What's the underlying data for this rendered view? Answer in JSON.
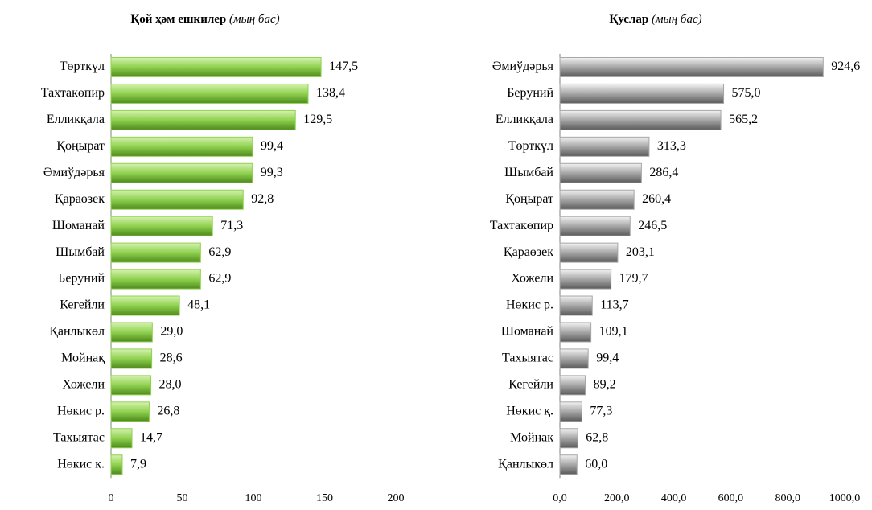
{
  "chart_data": [
    {
      "type": "barh",
      "title": "Қой ҳәм ешкилер",
      "subtitle": "(мың бас)",
      "categories": [
        "Төрткүл",
        "Тахтакөпир",
        "Елликқала",
        "Қоңырат",
        "Әмиўдәрья",
        "Қараөзек",
        "Шоманай",
        "Шымбай",
        "Беруний",
        "Кегейли",
        "Қанлыкөл",
        "Мойнақ",
        "Хожели",
        "Нөкис р.",
        "Тахыятас",
        "Нөкис қ."
      ],
      "values": [
        147.5,
        138.4,
        129.5,
        99.4,
        99.3,
        92.8,
        71.3,
        62.9,
        62.9,
        48.1,
        29.0,
        28.6,
        28.0,
        26.8,
        14.7,
        7.9
      ],
      "value_labels": [
        "147,5",
        "138,4",
        "129,5",
        "99,4",
        "99,3",
        "92,8",
        "71,3",
        "62,9",
        "62,9",
        "48,1",
        "29,0",
        "28,6",
        "28,0",
        "26,8",
        "14,7",
        "7,9"
      ],
      "color": "#8fd14f",
      "xlim": [
        0,
        200
      ],
      "xticks": [
        0,
        50,
        100,
        150,
        200
      ]
    },
    {
      "type": "barh",
      "title": "Қуслар",
      "subtitle": "(мың бас)",
      "categories": [
        "Әмиўдәрья",
        "Беруний",
        "Елликқала",
        "Төрткүл",
        "Шымбай",
        "Қоңырат",
        "Тахтакөпир",
        "Қараөзек",
        "Хожели",
        "Нөкис р.",
        "Шоманай",
        "Тахыятас",
        "Кегейли",
        "Нөкис қ.",
        "Мойнақ",
        "Қанлыкөл"
      ],
      "values": [
        924.6,
        575.0,
        565.2,
        313.3,
        286.4,
        260.4,
        246.5,
        203.1,
        179.7,
        113.7,
        109.1,
        99.4,
        89.2,
        77.3,
        62.8,
        60.0
      ],
      "value_labels": [
        "924,6",
        "575,0",
        "565,2",
        "313,3",
        "286,4",
        "260,4",
        "246,5",
        "203,1",
        "179,7",
        "113,7",
        "109,1",
        "99,4",
        "89,2",
        "77,3",
        "62,8",
        "60,0"
      ],
      "color": "#a6a6a6",
      "xlim": [
        0,
        1000
      ],
      "xticks": [
        {
          "value": 0,
          "label": "0,0"
        },
        {
          "value": 200,
          "label": "200,0"
        },
        {
          "value": 400,
          "label": "400,0"
        },
        {
          "value": 600,
          "label": "600,0"
        },
        {
          "value": 800,
          "label": "800,0"
        },
        {
          "value": 1000,
          "label": "1000,0"
        }
      ]
    }
  ]
}
